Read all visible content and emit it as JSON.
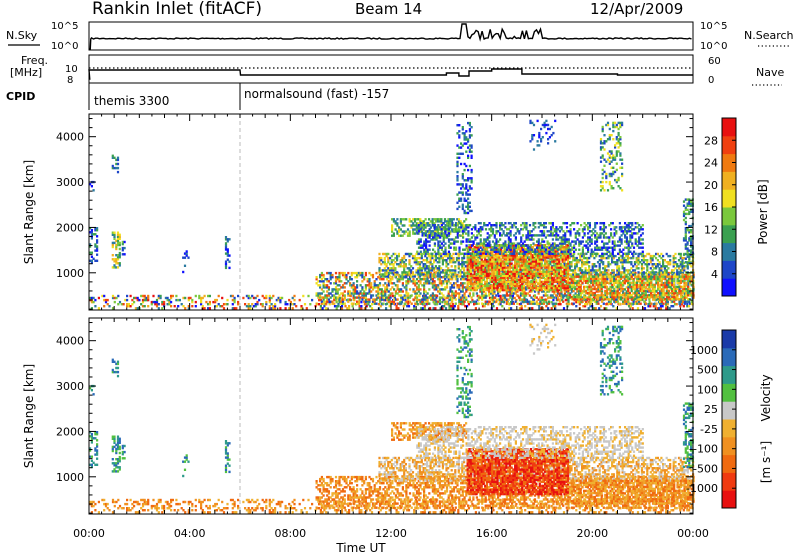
{
  "header": {
    "station": "Rankin Inlet (fitACF)",
    "beam": "Beam 14",
    "date": "12/Apr/2009"
  },
  "status_panel": {
    "nsky_label": "N.Sky",
    "nsky_ticks": [
      "10^5",
      "10^0"
    ],
    "nsearch_label": "N.Search",
    "nsearch_ticks": [
      "10^5",
      "10^0"
    ],
    "freq_label_1": "Freq.",
    "freq_label_2": "[MHz]",
    "freq_ticks": [
      "10",
      "8"
    ],
    "nave_label": "Nave",
    "nave_ticks": [
      "60",
      "0"
    ],
    "cpid_label": "CPID",
    "cpid_segments": [
      {
        "name": "themis 3300",
        "start_hour": 0
      },
      {
        "name": "normalsound (fast) -157",
        "start_hour": 6
      }
    ]
  },
  "chart_data": [
    {
      "type": "heatmap",
      "quantity": "Power",
      "ylabel": "Slant Range [km]",
      "yticks": [
        "1000",
        "2000",
        "3000",
        "4000"
      ],
      "ylim": [
        180,
        4500
      ],
      "xlim": [
        0,
        24
      ],
      "colorbar_label": "Power [dB]",
      "colorbar_ticks": [
        "4",
        "8",
        "12",
        "16",
        "20",
        "24",
        "28"
      ],
      "colorbar_range": [
        0,
        32
      ],
      "colors": [
        "#1010ff",
        "#1e46c8",
        "#2a7aa0",
        "#3aa050",
        "#7ac83c",
        "#f0e020",
        "#f0b020",
        "#f07a10",
        "#f04010",
        "#e81010"
      ]
    },
    {
      "type": "heatmap",
      "quantity": "Velocity",
      "ylabel": "Slant Range [km]",
      "yticks": [
        "1000",
        "2000",
        "3000",
        "4000"
      ],
      "ylim": [
        180,
        4500
      ],
      "xlim": [
        0,
        24
      ],
      "xlabel": "Time UT",
      "xticks": [
        "00:00",
        "04:00",
        "08:00",
        "12:00",
        "16:00",
        "20:00",
        "00:00"
      ],
      "colorbar_label": "Velocity",
      "colorbar_unit": "[m s⁻¹]",
      "colorbar_ticks": [
        "1000",
        "500",
        "100",
        "25",
        "-25",
        "-100",
        "-500",
        "-1000"
      ],
      "colors": [
        "#1a3aa8",
        "#2a6ab8",
        "#2e9a8a",
        "#52c040",
        "#c8c8c8",
        "#f0b030",
        "#f09020",
        "#f06a10",
        "#f03a10",
        "#e81010"
      ]
    }
  ]
}
